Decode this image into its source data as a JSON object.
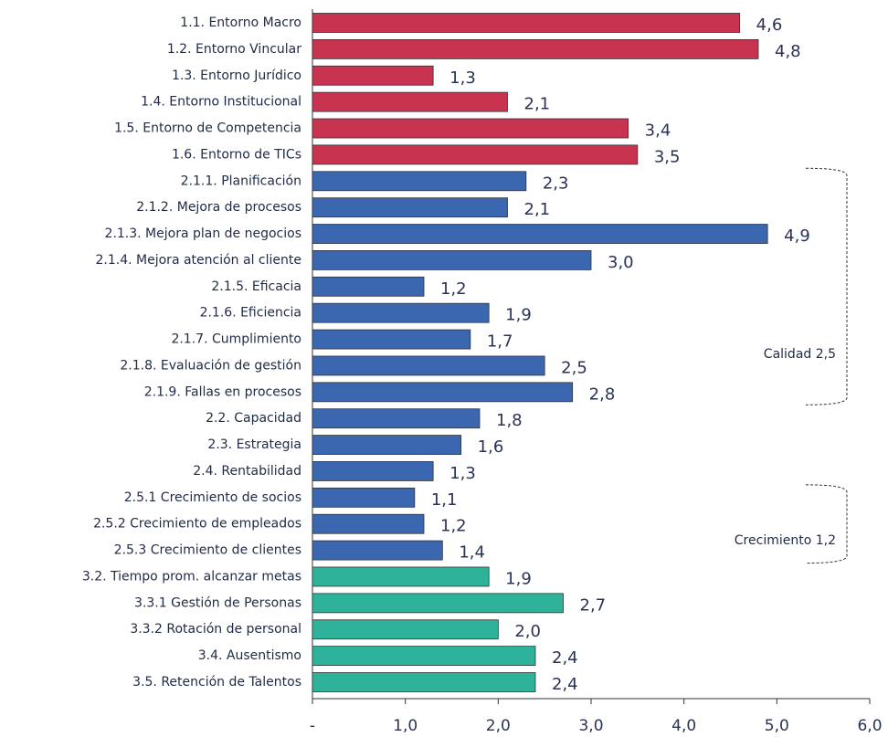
{
  "chart_data": {
    "type": "bar",
    "orientation": "horizontal",
    "categories": [
      "1.1. Entorno Macro",
      "1.2. Entorno Vincular",
      "1.3. Entorno Jurídico",
      "1.4. Entorno Institucional",
      "1.5. Entorno de Competencia",
      "1.6. Entorno de TICs",
      "2.1.1. Planificación",
      "2.1.2. Mejora de procesos",
      "2.1.3. Mejora plan de negocios",
      "2.1.4. Mejora atención al cliente",
      "2.1.5. Eficacia",
      "2.1.6. Eficiencia",
      "2.1.7. Cumplimiento",
      "2.1.8. Evaluación de gestión",
      "2.1.9. Fallas en procesos",
      "2.2. Capacidad",
      "2.3. Estrategia",
      "2.4. Rentabilidad",
      "2.5.1 Crecimiento de socios",
      "2.5.2 Crecimiento de empleados",
      "2.5.3 Crecimiento de clientes",
      "3.2. Tiempo prom. alcanzar metas",
      "3.3.1 Gestión de Personas",
      "3.3.2 Rotación de personal",
      "3.4. Ausentismo",
      "3.5. Retención de Talentos"
    ],
    "values": [
      4.6,
      4.8,
      1.3,
      2.1,
      3.4,
      3.5,
      2.3,
      2.1,
      4.9,
      3.0,
      1.2,
      1.9,
      1.7,
      2.5,
      2.8,
      1.8,
      1.6,
      1.3,
      1.1,
      1.2,
      1.4,
      1.9,
      2.7,
      2.0,
      2.4,
      2.4
    ],
    "value_labels": [
      "4,6",
      "4,8",
      "1,3",
      "2,1",
      "3,4",
      "3,5",
      "2,3",
      "2,1",
      "4,9",
      "3,0",
      "1,2",
      "1,9",
      "1,7",
      "2,5",
      "2,8",
      "1,8",
      "1,6",
      "1,3",
      "1,1",
      "1,2",
      "1,4",
      "1,9",
      "2,7",
      "2,0",
      "2,4",
      "2,4"
    ],
    "colors": [
      "#c8334f",
      "#c8334f",
      "#c8334f",
      "#c8334f",
      "#c8334f",
      "#c8334f",
      "#3b66b0",
      "#3b66b0",
      "#3b66b0",
      "#3b66b0",
      "#3b66b0",
      "#3b66b0",
      "#3b66b0",
      "#3b66b0",
      "#3b66b0",
      "#3b66b0",
      "#3b66b0",
      "#3b66b0",
      "#3b66b0",
      "#3b66b0",
      "#3b66b0",
      "#2eb39a",
      "#2eb39a",
      "#2eb39a",
      "#2eb39a",
      "#2eb39a"
    ],
    "xlim": [
      0,
      6
    ],
    "xticks": [
      {
        "value": 0,
        "label": "-"
      },
      {
        "value": 1,
        "label": "1,0"
      },
      {
        "value": 2,
        "label": "2,0"
      },
      {
        "value": 3,
        "label": "3,0"
      },
      {
        "value": 4,
        "label": "4,0"
      },
      {
        "value": 5,
        "label": "5,0"
      },
      {
        "value": 6,
        "label": "6,0"
      }
    ],
    "annotations": [
      "Calidad 2,5",
      "Crecimiento 1,2"
    ]
  }
}
